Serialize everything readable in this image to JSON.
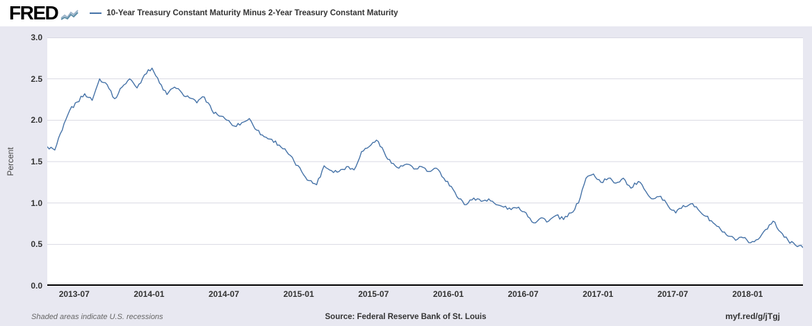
{
  "header": {
    "logo": "FRED"
  },
  "footer": {
    "note": "Shaded areas indicate U.S. recessions",
    "source": "Source: Federal Reserve Bank of St. Louis",
    "link": "myf.red/g/jTgj"
  },
  "colors": {
    "line": "#4572a7",
    "background": "#e8e8f1",
    "plot_background": "#ffffff",
    "grid": "#d9d9e3",
    "axis": "#000000"
  },
  "chart_data": {
    "type": "line",
    "title": "10-Year Treasury Constant Maturity Minus 2-Year Treasury Constant Maturity",
    "xlabel": "",
    "ylabel": "Percent",
    "ylim": [
      0.0,
      3.0
    ],
    "y_ticks": [
      0.0,
      0.5,
      1.0,
      1.5,
      2.0,
      2.5,
      3.0
    ],
    "x_ticks": [
      {
        "pos": 2013.5,
        "label": "2013-07"
      },
      {
        "pos": 2014.0,
        "label": "2014-01"
      },
      {
        "pos": 2014.5,
        "label": "2014-07"
      },
      {
        "pos": 2015.0,
        "label": "2015-01"
      },
      {
        "pos": 2015.5,
        "label": "2015-07"
      },
      {
        "pos": 2016.0,
        "label": "2016-01"
      },
      {
        "pos": 2016.5,
        "label": "2016-07"
      },
      {
        "pos": 2017.0,
        "label": "2017-01"
      },
      {
        "pos": 2017.5,
        "label": "2017-07"
      },
      {
        "pos": 2018.0,
        "label": "2018-01"
      }
    ],
    "grid": true,
    "legend_position": "top",
    "noise_amplitude": 0.022,
    "series": [
      {
        "name": "10-Year Treasury Constant Maturity Minus 2-Year Treasury Constant Maturity",
        "x_start": 2013.32,
        "x_step": 0.05,
        "x_unit": "decimal_year",
        "y_unit": "percent",
        "values": [
          1.68,
          1.64,
          1.88,
          2.12,
          2.22,
          2.32,
          2.24,
          2.5,
          2.43,
          2.26,
          2.4,
          2.5,
          2.39,
          2.55,
          2.63,
          2.45,
          2.31,
          2.4,
          2.33,
          2.27,
          2.21,
          2.28,
          2.12,
          2.05,
          2.0,
          1.93,
          1.97,
          2.02,
          1.88,
          1.8,
          1.77,
          1.7,
          1.62,
          1.5,
          1.38,
          1.27,
          1.22,
          1.45,
          1.39,
          1.38,
          1.44,
          1.4,
          1.62,
          1.68,
          1.76,
          1.62,
          1.48,
          1.42,
          1.47,
          1.41,
          1.44,
          1.38,
          1.42,
          1.3,
          1.2,
          1.05,
          0.98,
          1.06,
          1.02,
          1.05,
          0.98,
          0.95,
          0.92,
          0.95,
          0.88,
          0.76,
          0.82,
          0.78,
          0.85,
          0.8,
          0.88,
          1.0,
          1.3,
          1.35,
          1.25,
          1.3,
          1.24,
          1.3,
          1.18,
          1.26,
          1.14,
          1.05,
          1.08,
          0.96,
          0.88,
          0.97,
          0.99,
          0.92,
          0.84,
          0.76,
          0.68,
          0.6,
          0.55,
          0.58,
          0.52,
          0.56,
          0.68,
          0.78,
          0.65,
          0.55,
          0.49,
          0.46
        ]
      }
    ]
  }
}
